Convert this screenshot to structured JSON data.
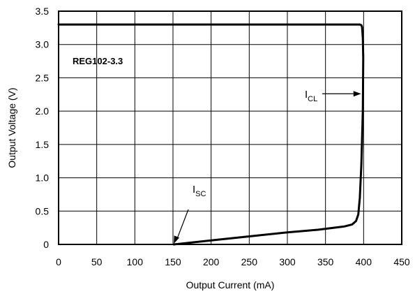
{
  "chart_data": {
    "type": "line",
    "xlabel": "Output Current (mA)",
    "ylabel": "Output Voltage (V)",
    "xlim": [
      0,
      450
    ],
    "ylim": [
      0,
      3.5
    ],
    "xticks": [
      "0",
      "50",
      "100",
      "150",
      "200",
      "250",
      "300",
      "350",
      "400",
      "450"
    ],
    "yticks": [
      "0",
      "0.5",
      "1.0",
      "1.5",
      "2.0",
      "2.5",
      "3.0",
      "3.5"
    ],
    "grid": true,
    "series": [
      {
        "name": "REG102-3.3",
        "x": [
          0,
          100,
          200,
          300,
          395,
          397,
          398,
          399,
          399.5,
          399,
          397,
          395,
          393,
          390,
          385,
          375,
          340,
          300,
          250,
          200,
          151
        ],
        "y": [
          3.3,
          3.3,
          3.3,
          3.3,
          3.3,
          3.29,
          3.26,
          3.1,
          2.8,
          2.0,
          1.2,
          0.7,
          0.45,
          0.35,
          0.3,
          0.27,
          0.22,
          0.18,
          0.12,
          0.06,
          0.0
        ]
      }
    ],
    "annotations": {
      "device_label": "REG102-3.3",
      "icl": {
        "main": "I",
        "sub": "CL",
        "points_to": [
          399.5,
          2.25
        ]
      },
      "isc": {
        "main": "I",
        "sub": "SC",
        "points_to": [
          151,
          0.0
        ]
      }
    }
  }
}
